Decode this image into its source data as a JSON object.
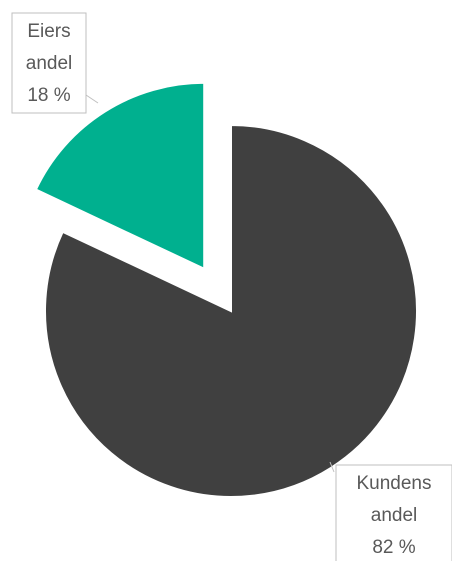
{
  "chart_data": {
    "type": "pie",
    "title": "",
    "slices": [
      {
        "label_lines": [
          "Kundens",
          "andel"
        ],
        "value": 82,
        "display": "82 %",
        "color": "#404040"
      },
      {
        "label_lines": [
          "Eiers",
          "andel"
        ],
        "value": 18,
        "display": "18 %",
        "color": "#00B08F"
      }
    ],
    "legend": "none",
    "label_style": "callout boxes with leader lines"
  }
}
